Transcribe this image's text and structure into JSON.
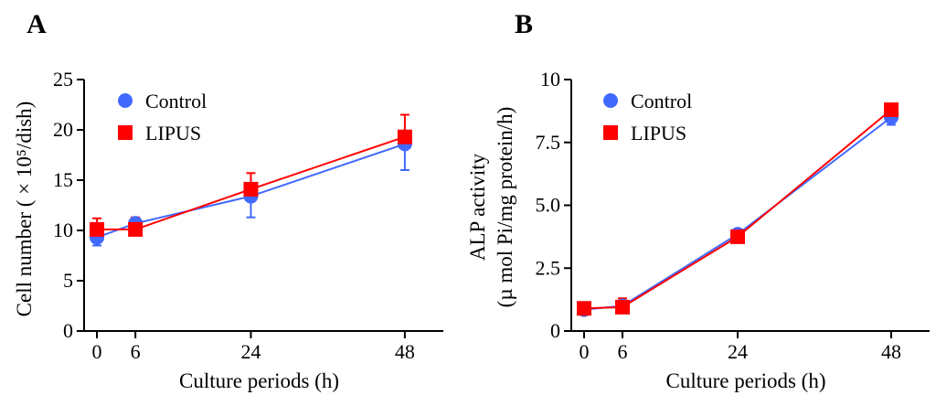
{
  "chart_data": [
    {
      "type": "line",
      "panel_label": "A",
      "xlabel": "Culture periods (h)",
      "ylabel": "Cell number ( × 10⁵/dish)",
      "x": [
        0,
        6,
        24,
        48
      ],
      "x_tick_labels": [
        "0",
        "6",
        "24",
        "48"
      ],
      "xlim": [
        -2,
        54
      ],
      "ylim": [
        0,
        25
      ],
      "y_ticks": [
        0,
        5,
        10,
        15,
        20,
        25
      ],
      "y_tick_labels": [
        "0",
        "5",
        "10",
        "15",
        "20",
        "25"
      ],
      "legend_position": "top-left",
      "series": [
        {
          "name": "Control",
          "marker": "circle",
          "color": "#4169ff",
          "values": [
            9.3,
            10.7,
            13.4,
            18.6
          ],
          "errors": [
            0.8,
            1.0,
            2.1,
            2.6
          ]
        },
        {
          "name": "LIPUS",
          "marker": "square",
          "color": "#ff0000",
          "values": [
            10.1,
            10.1,
            14.1,
            19.3
          ],
          "errors": [
            1.1,
            1.2,
            1.6,
            2.2
          ]
        }
      ]
    },
    {
      "type": "line",
      "panel_label": "B",
      "xlabel": "Culture periods (h)",
      "ylabel_lines": [
        "ALP activity",
        "(µ mol Pi/mg protein/h)"
      ],
      "x": [
        0,
        6,
        24,
        48
      ],
      "x_tick_labels": [
        "0",
        "6",
        "24",
        "48"
      ],
      "xlim": [
        -2,
        54
      ],
      "ylim": [
        0,
        10
      ],
      "y_ticks": [
        0,
        2.5,
        5,
        7.5,
        10
      ],
      "y_tick_labels": [
        "0",
        "2.5",
        "5.0",
        "7.5",
        "10"
      ],
      "legend_position": "top-left",
      "series": [
        {
          "name": "Control",
          "marker": "circle",
          "color": "#4169ff",
          "values": [
            0.85,
            1.0,
            3.85,
            8.5
          ],
          "errors": [
            0.15,
            0.2,
            0.15,
            0.3
          ]
        },
        {
          "name": "LIPUS",
          "marker": "square",
          "color": "#ff0000",
          "values": [
            0.9,
            0.95,
            3.75,
            8.8
          ],
          "errors": [
            0.15,
            0.35,
            0.2,
            0.2
          ]
        }
      ]
    }
  ]
}
